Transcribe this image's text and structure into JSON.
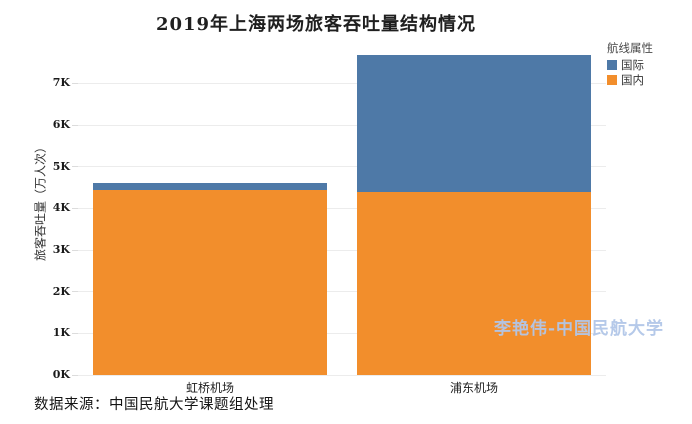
{
  "title": "2019年上海两场旅客吞吐量结构情况",
  "y_axis": {
    "label": "旅客吞吐量（万人次）",
    "ticks": [
      "0K",
      "1K",
      "2K",
      "3K",
      "4K",
      "5K",
      "6K",
      "7K"
    ]
  },
  "legend": {
    "title": "航线属性",
    "items": [
      {
        "label": "国际",
        "color": "#4e79a7"
      },
      {
        "label": "国内",
        "color": "#f28e2c"
      }
    ]
  },
  "watermark": "李艳伟-中国民航大学",
  "source_note": "数据来源：中国民航大学课题组处理",
  "colors": {
    "international_blue": "#4e79a7",
    "domestic_orange": "#f28e2c",
    "gridline": "#ececec",
    "watermark_blue": "#b1c6e8"
  },
  "chart_data": {
    "type": "bar",
    "stacked": true,
    "title": "2019年上海两场旅客吞吐量结构情况",
    "categories": [
      "虹桥机场",
      "浦东机场"
    ],
    "series": [
      {
        "name": "国内",
        "color": "#f28e2c",
        "values": [
          4450,
          4400
        ]
      },
      {
        "name": "国际",
        "color": "#4e79a7",
        "values": [
          150,
          3280
        ]
      }
    ],
    "unit": "万人次",
    "ylabel": "旅客吞吐量（万人次）",
    "ylim": [
      0,
      7900
    ],
    "ytick_step": 1000,
    "ytick_format": "K",
    "grid": true,
    "legend_title": "航线属性",
    "legend_position": "top-right"
  }
}
